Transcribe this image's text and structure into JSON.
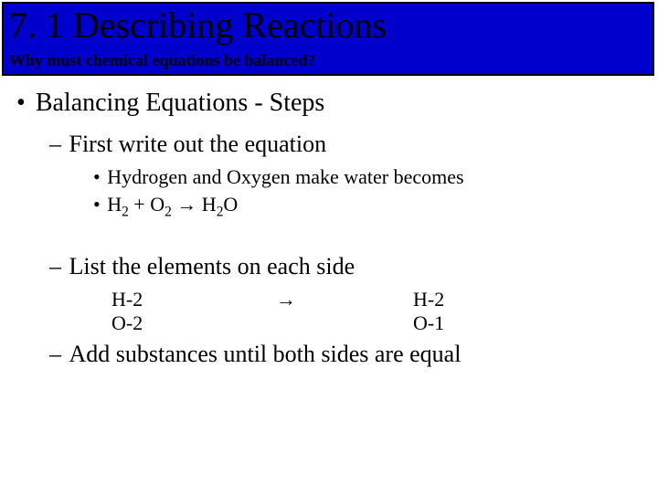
{
  "header": {
    "title": "7. 1 Describing Reactions",
    "subtitle": "Why must chemical equations be balanced?",
    "bg_color": "#0000cc",
    "border_color": "#000000"
  },
  "content": {
    "level1": "Balancing Equations - Steps",
    "step1": {
      "heading": "First write out the equation",
      "sub_a": "Hydrogen and Oxygen make water becomes",
      "sub_b_prefix": "H",
      "sub_b_s1": "2",
      "sub_b_plus": " + O",
      "sub_b_s2": "2",
      "sub_b_arrow": " → H",
      "sub_b_s3": "2",
      "sub_b_suffix": "O"
    },
    "step2": {
      "heading": "List the elements on each side",
      "rows": [
        {
          "left": "H-2",
          "arrow": "→",
          "right": "H-2"
        },
        {
          "left": "O-2",
          "arrow": "",
          "right": "O-1"
        }
      ]
    },
    "step3": {
      "heading": "Add substances until both sides are equal"
    }
  },
  "fonts": {
    "title_size": 40,
    "l1_size": 28,
    "l2_size": 26,
    "l3_size": 22
  },
  "colors": {
    "page_bg": "#ffffff",
    "text": "#000000"
  }
}
